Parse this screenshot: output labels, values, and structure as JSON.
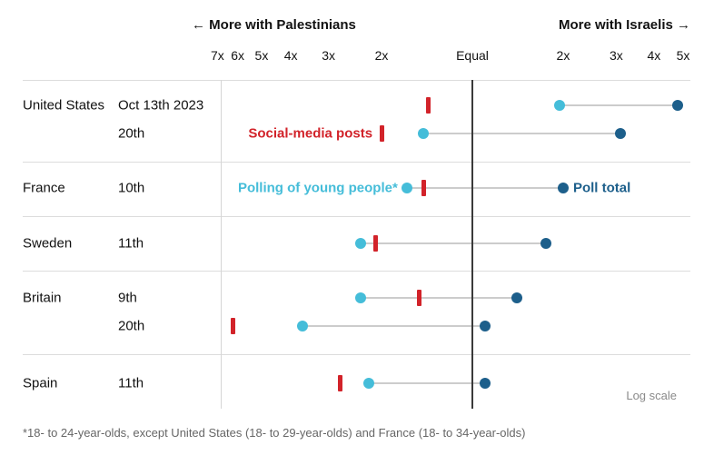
{
  "colors": {
    "red": "#d2232a",
    "cyan": "#45bdd9",
    "navy": "#1d5f8b",
    "connector": "#cccccc"
  },
  "chart_data": {
    "type": "dumbbell",
    "scale": "log",
    "value_convention": "negative = N-times more with Palestinians, positive = N-times more with Israelis",
    "axis": {
      "left_label": "← More with Palestinians",
      "right_label": "More with Israelis →",
      "equal_label": "Equal",
      "left_ticks": [
        "7x",
        "6x",
        "5x",
        "4x",
        "3x",
        "2x"
      ],
      "right_ticks": [
        "2x",
        "3x",
        "4x",
        "5x"
      ],
      "note": "Log scale"
    },
    "series_legend": {
      "social_media": "Social-media posts",
      "young": "Polling of young people*",
      "total": "Poll total"
    },
    "rows": [
      {
        "country": "United States",
        "date": "Oct 13th 2023",
        "social_media": -1.4,
        "young": 1.95,
        "total": 4.8
      },
      {
        "country": "",
        "date": "20th",
        "social_media": -2.0,
        "young": -1.45,
        "total": 3.1
      },
      {
        "country": "France",
        "date": "10th",
        "social_media": -1.45,
        "young": -1.65,
        "total": 2.0
      },
      {
        "country": "Sweden",
        "date": "11th",
        "social_media": -2.1,
        "young": -2.35,
        "total": 1.75
      },
      {
        "country": "Britain",
        "date": "9th",
        "social_media": -1.5,
        "young": -2.35,
        "total": 1.4
      },
      {
        "country": "",
        "date": "20th",
        "social_media": -6.2,
        "young": -3.65,
        "total": 1.1
      },
      {
        "country": "Spain",
        "date": "11th",
        "social_media": -2.75,
        "young": -2.2,
        "total": 1.1
      }
    ],
    "annotations": [
      {
        "text": "Social-media posts",
        "row": 1,
        "anchor": "social_media",
        "side": "left",
        "color": "red"
      },
      {
        "text": "Polling of young people*",
        "row": 2,
        "anchor": "young",
        "side": "left",
        "color": "cyan"
      },
      {
        "text": "Poll total",
        "row": 2,
        "anchor": "total",
        "side": "right",
        "color": "navy"
      }
    ],
    "footnote": "*18- to 24-year-olds, except United States (18- to 29-year-olds) and France (18- to 34-year-olds)"
  }
}
